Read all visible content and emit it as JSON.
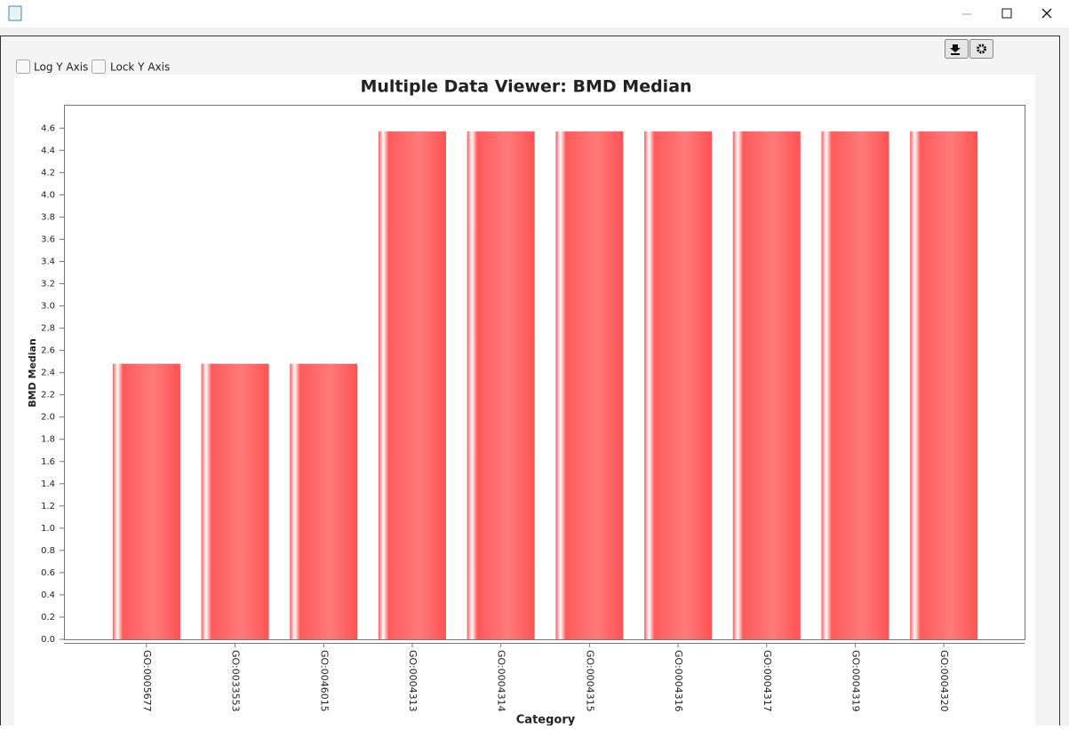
{
  "controls": {
    "log_y_axis": "Log Y Axis",
    "lock_y_axis": "Lock Y Axis"
  },
  "chart_data": {
    "type": "bar",
    "title": "Multiple Data Viewer: BMD Median",
    "x_label": "Category",
    "y_label": "BMD Median",
    "categories": [
      "GO:0005677",
      "GO:0033553",
      "GO:0046015",
      "GO:0004313",
      "GO:0004314",
      "GO:0004315",
      "GO:0004316",
      "GO:0004317",
      "GO:0004319",
      "GO:0004320"
    ],
    "values": [
      2.48,
      2.48,
      2.48,
      4.57,
      4.57,
      4.57,
      4.57,
      4.57,
      4.57,
      4.57
    ],
    "color": "#ff5a5a",
    "ylim": [
      0,
      4.81
    ],
    "yticks": [
      {
        "value": 0,
        "label": "0.0"
      },
      0.2,
      0.4,
      0.6,
      0.8,
      {
        "value": 1,
        "label": "1.0"
      },
      1.2,
      1.4,
      1.6,
      1.8,
      {
        "value": 2,
        "label": "2.0"
      },
      2.2,
      2.4,
      2.6,
      2.8,
      {
        "value": 3,
        "label": "3.0"
      },
      3.2,
      3.4,
      3.6,
      3.8,
      {
        "value": 4,
        "label": "4.0"
      },
      4.2,
      4.4,
      4.6
    ],
    "grid": false
  }
}
